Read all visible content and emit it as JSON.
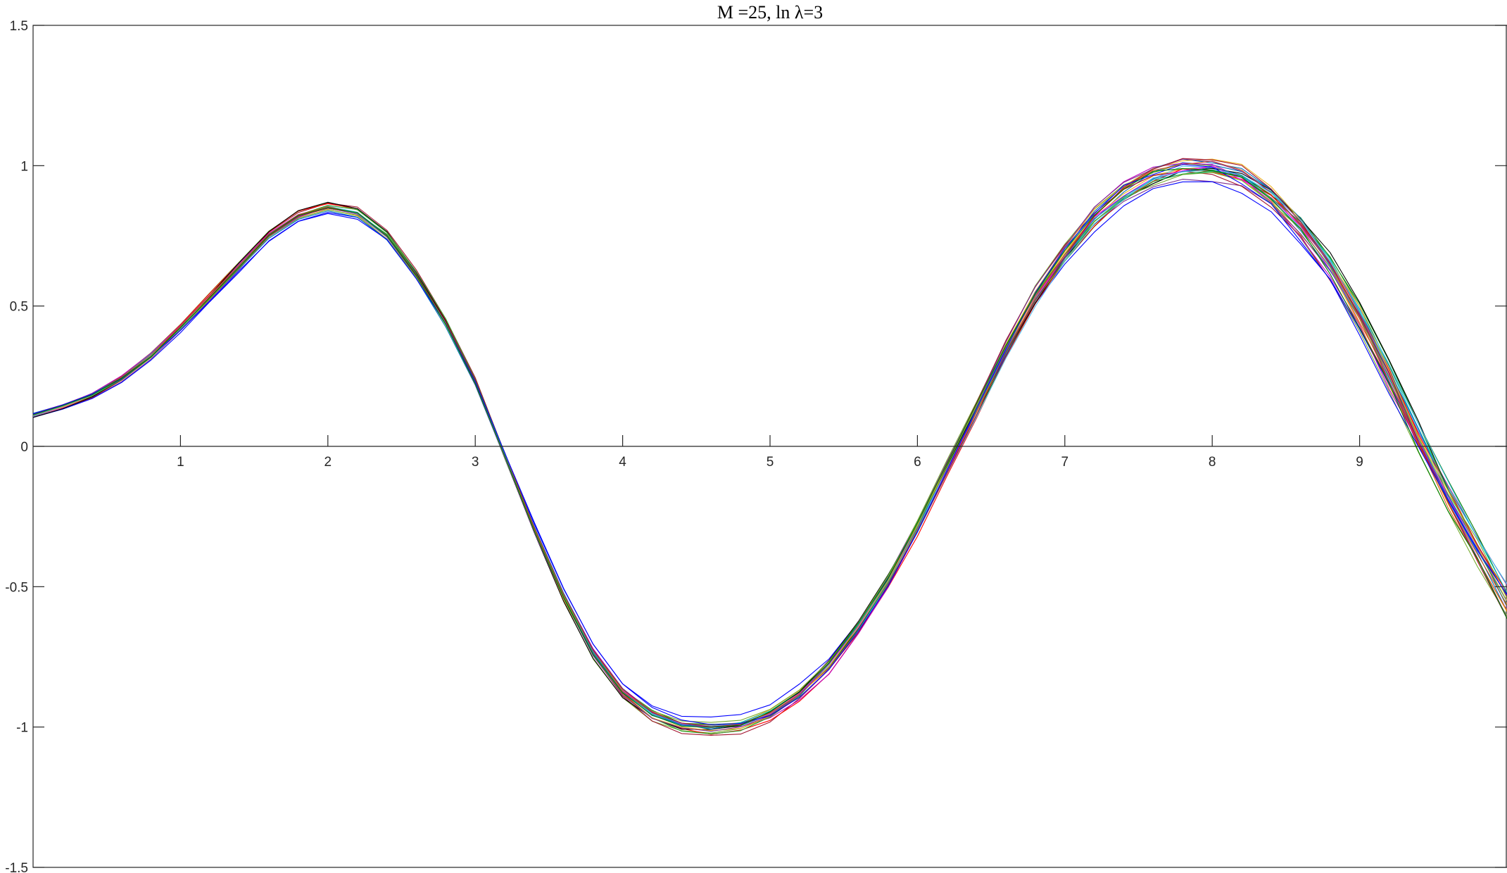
{
  "chart_data": {
    "type": "line",
    "title": "M =25, ln λ=3",
    "xlabel": "",
    "ylabel": "",
    "xlim": [
      0,
      10
    ],
    "ylim": [
      -1.5,
      1.5
    ],
    "x_ticks": [
      1,
      2,
      3,
      4,
      5,
      6,
      7,
      8,
      9
    ],
    "x_tick_labels": [
      "1",
      "2",
      "3",
      "4",
      "5",
      "6",
      "7",
      "8",
      "9"
    ],
    "y_ticks": [
      1.5,
      1,
      0.5,
      0,
      -0.5,
      -1,
      -1.5
    ],
    "y_tick_labels": [
      "1.5",
      "1",
      "0.5",
      "0",
      "-0.5",
      "-1",
      "-1.5"
    ],
    "x_axis_at_y": 0,
    "grid": false,
    "legend": "none",
    "series_count": 25,
    "x": [
      0,
      0.2,
      0.4,
      0.6,
      0.8,
      1.0,
      1.2,
      1.4,
      1.6,
      1.8,
      2.0,
      2.2,
      2.4,
      2.6,
      2.8,
      3.0,
      3.2,
      3.4,
      3.6,
      3.8,
      4.0,
      4.2,
      4.4,
      4.6,
      4.8,
      5.0,
      5.2,
      5.4,
      5.6,
      5.8,
      6.0,
      6.2,
      6.4,
      6.6,
      6.8,
      7.0,
      7.2,
      7.4,
      7.6,
      7.8,
      8.0,
      8.2,
      8.4,
      8.6,
      8.8,
      9.0,
      9.2,
      9.4,
      9.6,
      9.8,
      10.0
    ],
    "y_mean": [
      0.11,
      0.14,
      0.18,
      0.24,
      0.32,
      0.42,
      0.53,
      0.64,
      0.75,
      0.82,
      0.85,
      0.83,
      0.75,
      0.61,
      0.44,
      0.23,
      -0.03,
      -0.29,
      -0.53,
      -0.73,
      -0.87,
      -0.95,
      -0.99,
      -1.0,
      -0.99,
      -0.95,
      -0.88,
      -0.78,
      -0.64,
      -0.48,
      -0.29,
      -0.08,
      0.13,
      0.34,
      0.53,
      0.68,
      0.81,
      0.9,
      0.96,
      0.99,
      0.99,
      0.96,
      0.89,
      0.78,
      0.64,
      0.46,
      0.25,
      0.03,
      -0.18,
      -0.37,
      -0.56
    ],
    "colors": [
      "#0072BD",
      "#D95319",
      "#EDB120",
      "#7E2F8E",
      "#77AC30",
      "#4DBEEE",
      "#A2142F",
      "#0000FF",
      "#008000",
      "#FF0000",
      "#00BFBF",
      "#BF00BF",
      "#000000",
      "#FF00FF",
      "#1F77B4",
      "#2CA02C"
    ]
  }
}
